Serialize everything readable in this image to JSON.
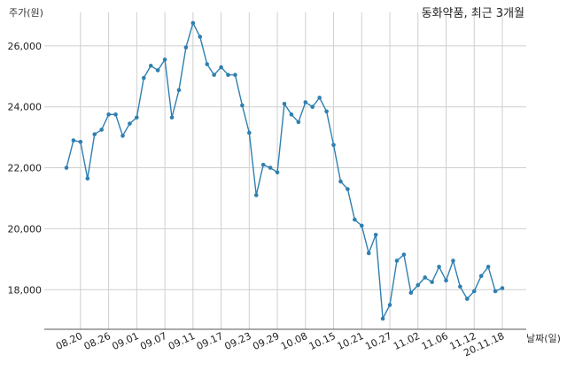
{
  "chart_data": {
    "type": "line",
    "title": "동화약품, 최근 3개월",
    "xlabel": "날짜(일)",
    "ylabel": "주가(원)",
    "ylim": [
      16700,
      27100
    ],
    "grid": true,
    "color": "#2f7fb0",
    "yticks": [
      18000,
      20000,
      22000,
      24000,
      26000
    ],
    "ytick_labels": [
      "18,000",
      "20,000",
      "22,000",
      "24,000",
      "26,000"
    ],
    "xtick_labels": [
      "08.20",
      "08.26",
      "09.01",
      "09.07",
      "09.11",
      "09.17",
      "09.23",
      "09.29",
      "10.08",
      "10.15",
      "10.21",
      "10.27",
      "11.02",
      "11.06",
      "11.12",
      "20.11.18"
    ],
    "xtick_index": [
      2,
      6,
      10,
      14,
      18,
      22,
      26,
      30,
      34,
      38,
      42,
      46,
      50,
      54,
      58,
      62
    ],
    "values": [
      22000,
      22900,
      22850,
      21650,
      23100,
      23250,
      23750,
      23750,
      23050,
      23450,
      23650,
      24950,
      25350,
      25200,
      25550,
      23650,
      24550,
      25950,
      26750,
      26300,
      25400,
      25050,
      25300,
      25050,
      25050,
      24050,
      23150,
      21100,
      22100,
      22000,
      21850,
      24100,
      23750,
      23500,
      24150,
      24000,
      24300,
      23850,
      22750,
      21550,
      21300,
      20300,
      20100,
      19200,
      19800,
      17050,
      17500,
      18950,
      19150,
      17900,
      18150,
      18400,
      18250,
      18750,
      18300,
      18950,
      18100,
      17700,
      17950,
      18450,
      18750,
      17950,
      18050
    ]
  }
}
